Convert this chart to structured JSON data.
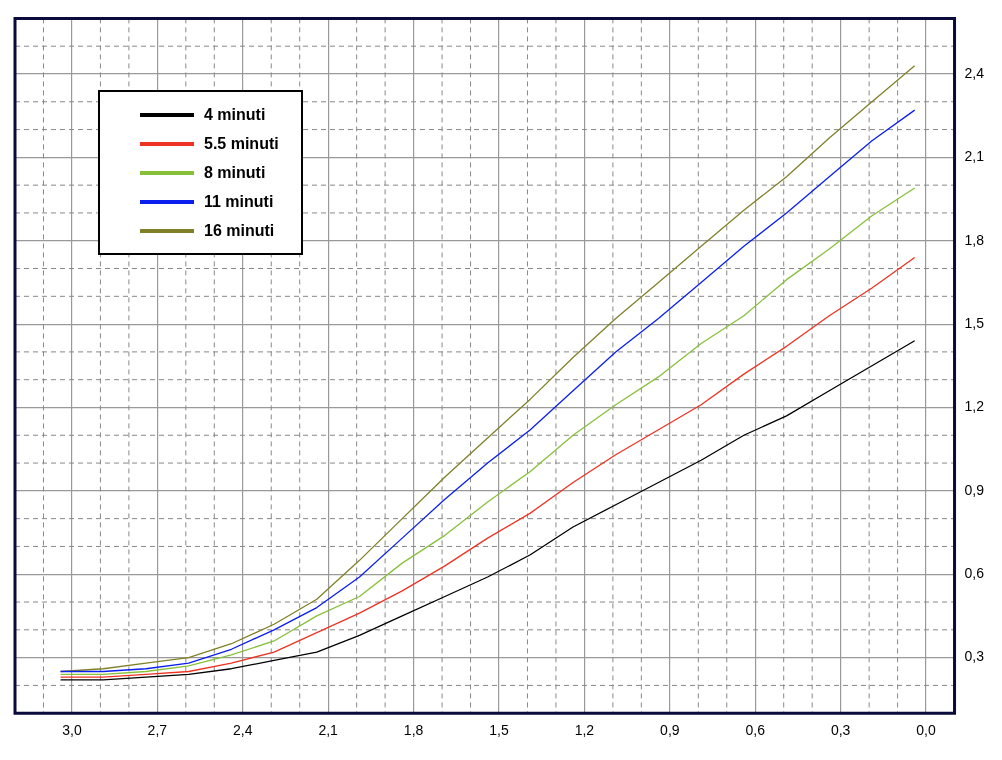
{
  "chart_data": {
    "type": "line",
    "x": [
      3.04,
      2.89,
      2.74,
      2.59,
      2.44,
      2.29,
      2.14,
      1.99,
      1.84,
      1.69,
      1.54,
      1.39,
      1.24,
      1.09,
      0.94,
      0.79,
      0.64,
      0.49,
      0.34,
      0.19,
      0.04
    ],
    "series": [
      {
        "name": "4 minuti",
        "color": "#000000",
        "values": [
          0.22,
          0.22,
          0.23,
          0.24,
          0.26,
          0.29,
          0.32,
          0.38,
          0.45,
          0.52,
          0.59,
          0.67,
          0.77,
          0.85,
          0.93,
          1.01,
          1.1,
          1.17,
          1.26,
          1.35,
          1.44
        ]
      },
      {
        "name": "5.5 minuti",
        "color": "#ee3322",
        "values": [
          0.23,
          0.23,
          0.24,
          0.25,
          0.28,
          0.32,
          0.39,
          0.46,
          0.54,
          0.63,
          0.73,
          0.82,
          0.93,
          1.03,
          1.12,
          1.21,
          1.32,
          1.42,
          1.53,
          1.63,
          1.74
        ]
      },
      {
        "name": "8 minuti",
        "color": "#88c03a",
        "values": [
          0.24,
          0.24,
          0.25,
          0.27,
          0.31,
          0.36,
          0.45,
          0.52,
          0.64,
          0.74,
          0.86,
          0.97,
          1.1,
          1.21,
          1.31,
          1.43,
          1.53,
          1.66,
          1.77,
          1.89,
          1.99
        ]
      },
      {
        "name": "11 minuti",
        "color": "#0a1ef0",
        "values": [
          0.25,
          0.25,
          0.26,
          0.28,
          0.33,
          0.4,
          0.48,
          0.59,
          0.73,
          0.87,
          1.0,
          1.12,
          1.26,
          1.4,
          1.52,
          1.65,
          1.78,
          1.9,
          2.03,
          2.16,
          2.27
        ]
      },
      {
        "name": "16 minuti",
        "color": "#808028",
        "values": [
          0.25,
          0.26,
          0.28,
          0.3,
          0.35,
          0.42,
          0.51,
          0.65,
          0.8,
          0.95,
          1.09,
          1.23,
          1.38,
          1.52,
          1.65,
          1.78,
          1.91,
          2.03,
          2.17,
          2.3,
          2.43
        ]
      }
    ],
    "xlim": [
      3.2,
      -0.1
    ],
    "xticks": [
      {
        "value": 3.1,
        "label": null
      },
      {
        "value": 3.0,
        "label": "3,0"
      },
      {
        "value": 2.9,
        "label": null
      },
      {
        "value": 2.8,
        "label": null
      },
      {
        "value": 2.7,
        "label": "2,7"
      },
      {
        "value": 2.6,
        "label": null
      },
      {
        "value": 2.5,
        "label": null
      },
      {
        "value": 2.4,
        "label": "2,4"
      },
      {
        "value": 2.3,
        "label": null
      },
      {
        "value": 2.2,
        "label": null
      },
      {
        "value": 2.1,
        "label": "2,1"
      },
      {
        "value": 2.0,
        "label": null
      },
      {
        "value": 1.9,
        "label": null
      },
      {
        "value": 1.8,
        "label": "1,8"
      },
      {
        "value": 1.7,
        "label": null
      },
      {
        "value": 1.6,
        "label": null
      },
      {
        "value": 1.5,
        "label": "1,5"
      },
      {
        "value": 1.4,
        "label": null
      },
      {
        "value": 1.3,
        "label": null
      },
      {
        "value": 1.2,
        "label": "1,2"
      },
      {
        "value": 1.1,
        "label": null
      },
      {
        "value": 1.0,
        "label": null
      },
      {
        "value": 0.9,
        "label": "0,9"
      },
      {
        "value": 0.8,
        "label": null
      },
      {
        "value": 0.7,
        "label": null
      },
      {
        "value": 0.6,
        "label": "0,6"
      },
      {
        "value": 0.5,
        "label": null
      },
      {
        "value": 0.4,
        "label": null
      },
      {
        "value": 0.3,
        "label": "0,3"
      },
      {
        "value": 0.2,
        "label": null
      },
      {
        "value": 0.1,
        "label": null
      },
      {
        "value": 0.0,
        "label": "0,0"
      }
    ],
    "ylim": [
      0.1,
      2.6
    ],
    "yticks": [
      {
        "value": 0.2,
        "label": null
      },
      {
        "value": 0.3,
        "label": "0,3"
      },
      {
        "value": 0.4,
        "label": null
      },
      {
        "value": 0.5,
        "label": null
      },
      {
        "value": 0.6,
        "label": "0,6"
      },
      {
        "value": 0.7,
        "label": null
      },
      {
        "value": 0.8,
        "label": null
      },
      {
        "value": 0.9,
        "label": "0,9"
      },
      {
        "value": 1.0,
        "label": null
      },
      {
        "value": 1.1,
        "label": null
      },
      {
        "value": 1.2,
        "label": "1,2"
      },
      {
        "value": 1.3,
        "label": null
      },
      {
        "value": 1.4,
        "label": null
      },
      {
        "value": 1.5,
        "label": "1,5"
      },
      {
        "value": 1.6,
        "label": null
      },
      {
        "value": 1.7,
        "label": null
      },
      {
        "value": 1.8,
        "label": "1,8"
      },
      {
        "value": 1.9,
        "label": null
      },
      {
        "value": 2.0,
        "label": null
      },
      {
        "value": 2.1,
        "label": "2,1"
      },
      {
        "value": 2.2,
        "label": null
      },
      {
        "value": 2.3,
        "label": null
      },
      {
        "value": 2.4,
        "label": "2,4"
      },
      {
        "value": 2.5,
        "label": null
      }
    ],
    "grid": true,
    "legend": "top left",
    "marker": "none",
    "line_style": "solid"
  }
}
